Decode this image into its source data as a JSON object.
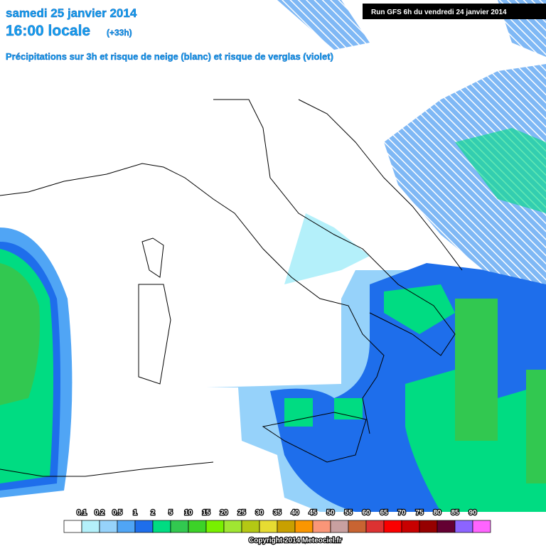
{
  "header": {
    "date": "samedi 25 janvier 2014",
    "time": "16:00 locale",
    "offset": "(+33h)",
    "description": "Précipitations sur 3h et risque de neige (blanc) et risque de verglas (violet)",
    "run": "Run GFS 6h du vendredi 24 janvier 2014"
  },
  "legend": [
    {
      "label": "0.1",
      "color": "#ffffff"
    },
    {
      "label": "0.2",
      "color": "#b4f0fa"
    },
    {
      "label": "0.5",
      "color": "#96d2fa"
    },
    {
      "label": "1",
      "color": "#50a5f5"
    },
    {
      "label": "2",
      "color": "#1e6eeb"
    },
    {
      "label": "5",
      "color": "#00dc82"
    },
    {
      "label": "10",
      "color": "#32c850"
    },
    {
      "label": "15",
      "color": "#3cd228"
    },
    {
      "label": "20",
      "color": "#78f000"
    },
    {
      "label": "25",
      "color": "#a0e632"
    },
    {
      "label": "30",
      "color": "#b4c814"
    },
    {
      "label": "35",
      "color": "#e6dc32"
    },
    {
      "label": "40",
      "color": "#c8a000"
    },
    {
      "label": "45",
      "color": "#fa9600"
    },
    {
      "label": "50",
      "color": "#fa9678"
    },
    {
      "label": "55",
      "color": "#c8a0a0"
    },
    {
      "label": "60",
      "color": "#c86432"
    },
    {
      "label": "65",
      "color": "#dc3232"
    },
    {
      "label": "70",
      "color": "#fa0000"
    },
    {
      "label": "75",
      "color": "#c80000"
    },
    {
      "label": "80",
      "color": "#960000"
    },
    {
      "label": "85",
      "color": "#640032"
    },
    {
      "label": "90",
      "color": "#8c64ff"
    }
  ],
  "last_color": "#ff64ff",
  "footer": {
    "copyright": "Copyright 2014 Meteociel.fr"
  }
}
